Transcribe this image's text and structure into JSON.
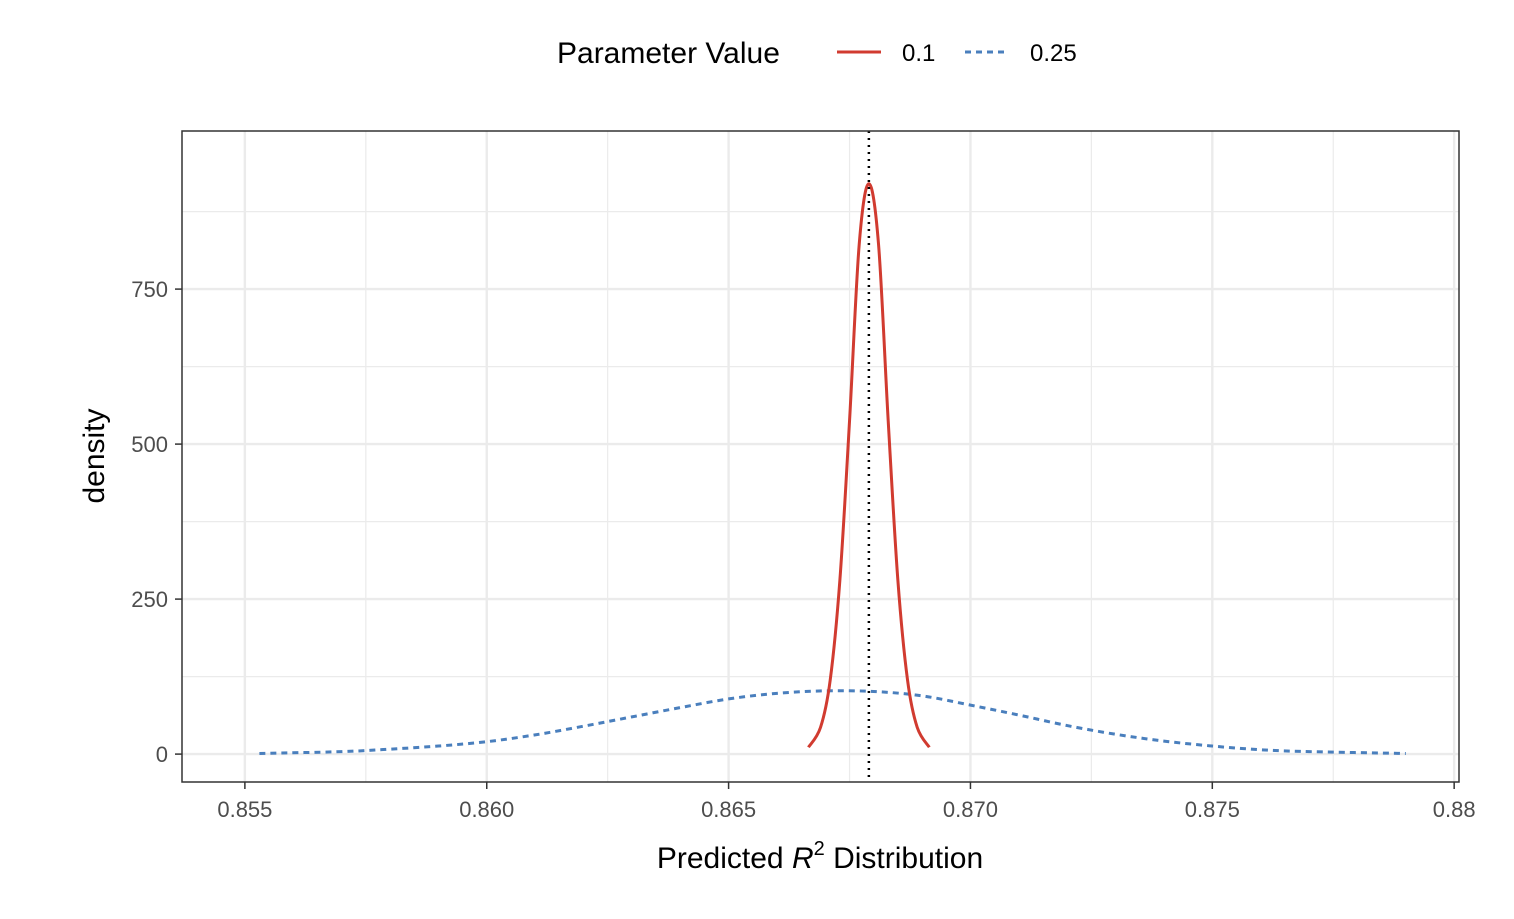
{
  "chart_data": {
    "type": "line",
    "xlabel": {
      "prefix": "Predicted ",
      "var": "R",
      "sup": "2",
      "suffix": " Distribution"
    },
    "ylabel": "density",
    "xlim": [
      0.8537,
      0.8801
    ],
    "ylim": [
      -45,
      1005
    ],
    "x_ticks": [
      0.855,
      0.86,
      0.865,
      0.87,
      0.875,
      0.88
    ],
    "x_tick_labels": [
      "0.855",
      "0.860",
      "0.865",
      "0.870",
      "0.875",
      "0.88"
    ],
    "y_ticks": [
      0,
      250,
      500,
      750
    ],
    "y_tick_labels": [
      "0",
      "250",
      "500",
      "750"
    ],
    "grid": true,
    "legend": {
      "title": "Parameter Value",
      "position": "top",
      "entries": [
        {
          "label": "0.1",
          "color": "#d13b30",
          "linetype": "solid"
        },
        {
          "label": "0.25",
          "color": "#4a7fbd",
          "linetype": "dashed"
        }
      ]
    },
    "reference_line": {
      "x": 0.8679,
      "style": "dotted",
      "color": "#000000"
    },
    "series": [
      {
        "name": "0.1",
        "color": "#d13b30",
        "linetype": "solid",
        "x": [
          0.86665,
          0.8669,
          0.8671,
          0.8673,
          0.8675,
          0.8677,
          0.8679,
          0.8681,
          0.8683,
          0.8685,
          0.8687,
          0.8689,
          0.86915
        ],
        "y": [
          11,
          43,
          119,
          280,
          537,
          822,
          920,
          822,
          537,
          280,
          119,
          43,
          11
        ]
      },
      {
        "name": "0.25",
        "color": "#4a7fbd",
        "linetype": "dashed",
        "x": [
          0.8553,
          0.857,
          0.858,
          0.859,
          0.86,
          0.861,
          0.862,
          0.863,
          0.864,
          0.865,
          0.866,
          0.867,
          0.868,
          0.869,
          0.87,
          0.871,
          0.872,
          0.873,
          0.874,
          0.875,
          0.876,
          0.877,
          0.879
        ],
        "y": [
          1,
          4,
          8,
          13,
          20,
          31,
          45,
          60,
          75,
          89,
          98,
          102,
          101,
          94,
          79,
          63,
          46,
          32,
          21,
          13,
          7,
          4,
          1
        ]
      }
    ]
  }
}
